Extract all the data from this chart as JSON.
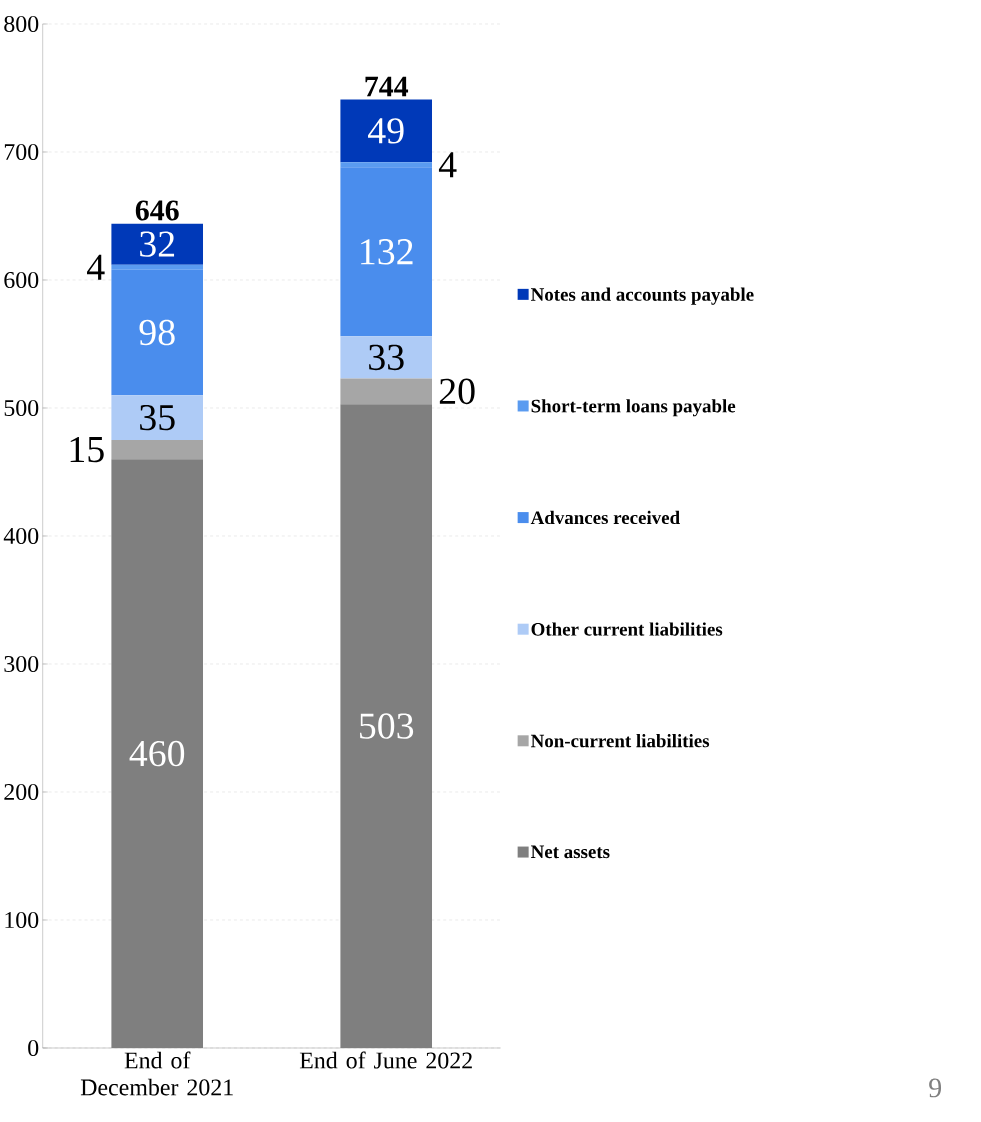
{
  "chart_data": {
    "type": "bar",
    "stacked": true,
    "categories": [
      "End of December 2021",
      "End of June 2022"
    ],
    "series": [
      {
        "name": "Net assets",
        "color": "#7f7f7f",
        "values": [
          460,
          503
        ]
      },
      {
        "name": "Non-current liabilities",
        "color": "#a6a6a6",
        "values": [
          15,
          20
        ]
      },
      {
        "name": "Other current liabilities",
        "color": "#aecbf6",
        "values": [
          35,
          33
        ]
      },
      {
        "name": "Advances received",
        "color": "#4a8ded",
        "values": [
          98,
          132
        ]
      },
      {
        "name": "Short-term loans payable",
        "color": "#5a9bf0",
        "values": [
          4,
          4
        ]
      },
      {
        "name": "Notes and accounts payable",
        "color": "#0039b8",
        "values": [
          32,
          49
        ]
      }
    ],
    "totals": [
      "646",
      "744"
    ],
    "data_labels": true,
    "ylim": [
      0,
      800
    ],
    "yticks": [
      0,
      100,
      200,
      300,
      400,
      500,
      600,
      700,
      800
    ],
    "grid": "y",
    "legend": "right",
    "annotations": [
      "9"
    ]
  }
}
